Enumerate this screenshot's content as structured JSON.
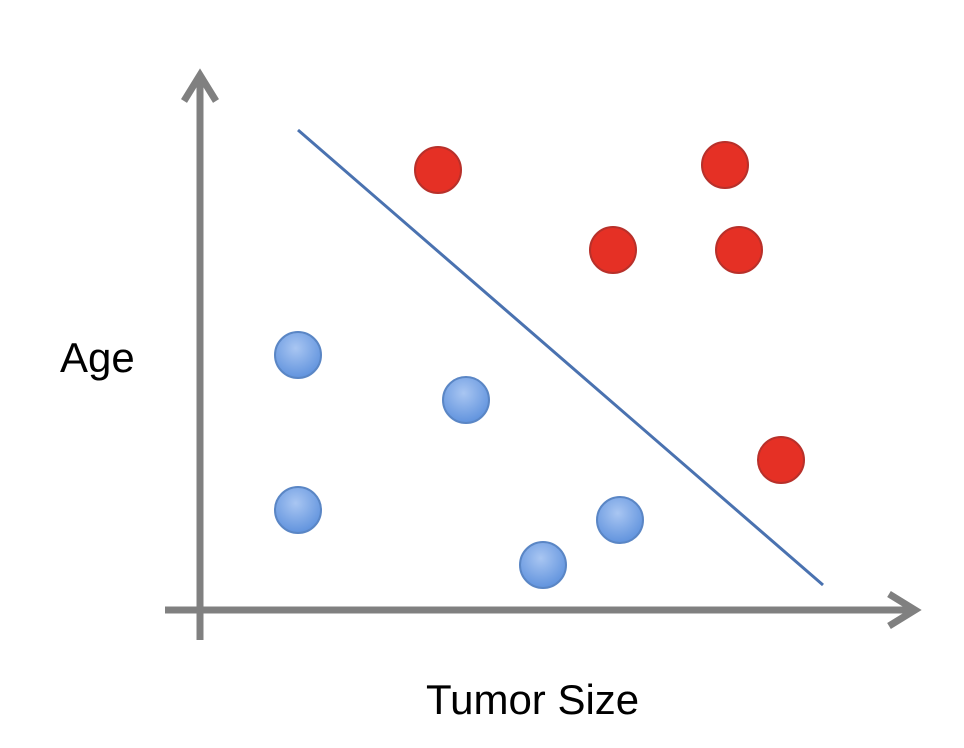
{
  "chart_data": {
    "type": "scatter",
    "title": "",
    "xlabel": "Tumor Size",
    "ylabel": "Age",
    "xlim": [
      0,
      10
    ],
    "ylim": [
      0,
      10
    ],
    "grid": false,
    "legend": "none",
    "series": [
      {
        "color": "#e53025",
        "points": [
          {
            "x": 3.4,
            "y": 8.8
          },
          {
            "x": 5.9,
            "y": 7.2
          },
          {
            "x": 7.5,
            "y": 8.9
          },
          {
            "x": 7.7,
            "y": 7.2
          },
          {
            "x": 8.3,
            "y": 3.0
          }
        ]
      },
      {
        "color": "#7aa7e6",
        "points": [
          {
            "x": 1.4,
            "y": 5.1
          },
          {
            "x": 3.8,
            "y": 4.2
          },
          {
            "x": 1.4,
            "y": 2.0
          },
          {
            "x": 4.9,
            "y": 0.9
          },
          {
            "x": 6.0,
            "y": 1.8
          }
        ]
      }
    ],
    "decision_boundary": {
      "color": "#4a72b0",
      "points": [
        {
          "x": 1.4,
          "y": 9.6
        },
        {
          "x": 8.9,
          "y": 0.5
        }
      ]
    }
  }
}
